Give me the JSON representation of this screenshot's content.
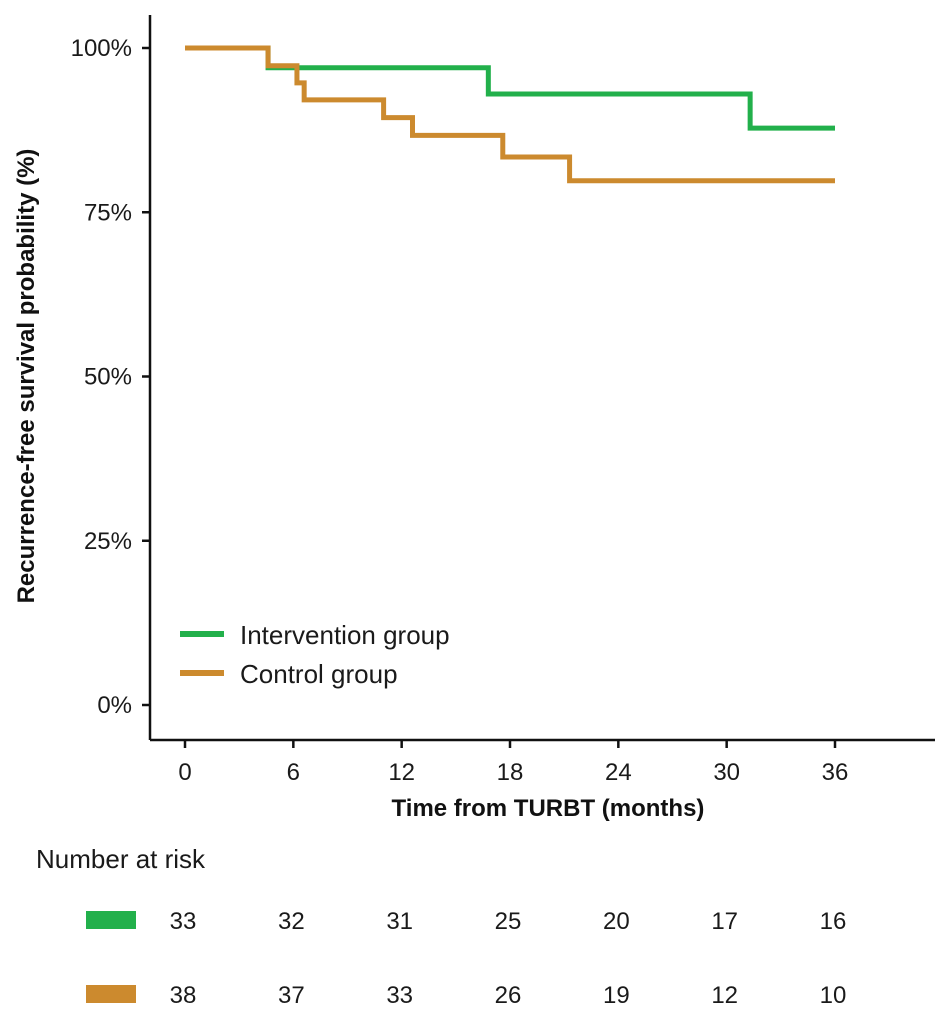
{
  "chart_data": {
    "type": "line",
    "subtype": "kaplan-meier step",
    "title": "",
    "xlabel": "Time from TURBT (months)",
    "ylabel": "Recurrence-free survival probability (%)",
    "xlim": [
      0,
      36
    ],
    "ylim": [
      0,
      100
    ],
    "x_ticks": [
      0,
      6,
      12,
      18,
      24,
      30,
      36
    ],
    "y_ticks": [
      0,
      25,
      50,
      75,
      100
    ],
    "y_tick_labels": [
      "0%",
      "25%",
      "50%",
      "75%",
      "100%"
    ],
    "grid": false,
    "legend_position": "bottom-left",
    "series": [
      {
        "name": "Intervention group",
        "color": "#22b04b",
        "x": [
          0,
          4.6,
          16.8,
          31.3,
          36
        ],
        "y": [
          100,
          97,
          93,
          87.8,
          87.8
        ]
      },
      {
        "name": "Control group",
        "color": "#cc8a2e",
        "x": [
          0,
          4.6,
          6.2,
          6.6,
          11.0,
          12.6,
          17.6,
          21.3,
          36
        ],
        "y": [
          100,
          97.3,
          94.7,
          92.1,
          89.4,
          86.7,
          83.4,
          79.8,
          79.8
        ]
      }
    ]
  },
  "risk_table": {
    "title": "Number at risk",
    "times": [
      0,
      6,
      12,
      18,
      24,
      30,
      36
    ],
    "rows": [
      {
        "series": "Intervention group",
        "color": "#22b04b",
        "values": [
          33,
          32,
          31,
          25,
          20,
          17,
          16
        ]
      },
      {
        "series": "Control group",
        "color": "#cc8a2e",
        "values": [
          38,
          37,
          33,
          26,
          19,
          12,
          10
        ]
      }
    ]
  }
}
